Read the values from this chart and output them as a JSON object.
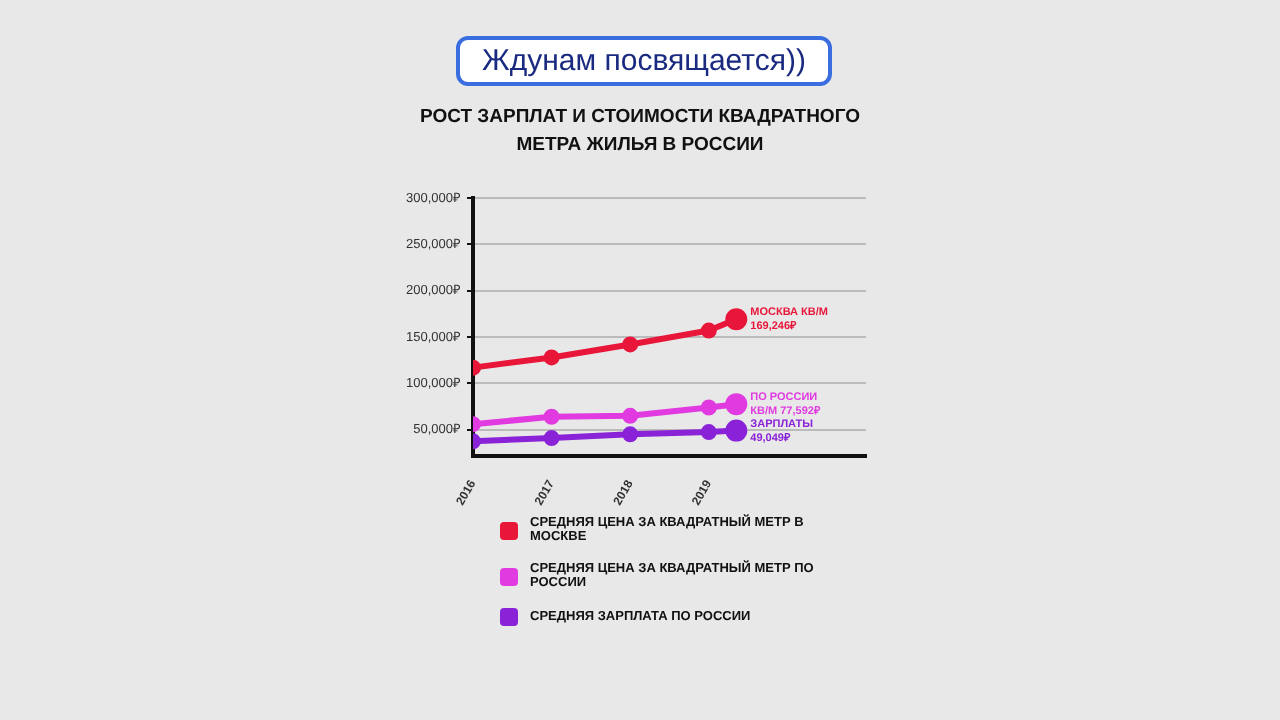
{
  "chart_data": {
    "type": "line",
    "title": "РОСТ ЗАРПЛАТ И СТОИМОСТИ КВАДРАТНОГО МЕТРА ЖИЛЬЯ В РОССИИ",
    "annotations": [
      "Ждунам посвящается))"
    ],
    "x": [
      2016,
      2017,
      2018,
      2019,
      2019.35
    ],
    "series": [
      {
        "name": "СРЕДНЯЯ ЦЕНА ЗА КВАДРАТНЫЙ МЕТР В МОСКВЕ",
        "color": "#e8173a",
        "values": [
          117000,
          128000,
          142000,
          157000,
          169246
        ],
        "value_labels": [
          null,
          null,
          null,
          null,
          "МОСКВА КВ/М\n169,246₽"
        ]
      },
      {
        "name": "СРЕДНЯЯ ЦЕНА ЗА КВАДРАТНЫЙ МЕТР ПО РОССИИ",
        "color": "#e03ae0",
        "values": [
          56000,
          64000,
          65000,
          74000,
          77592
        ],
        "value_labels": [
          null,
          null,
          null,
          null,
          "ПО РОССИИ\nКВ/М 77,592₽"
        ]
      },
      {
        "name": "СРЕДНЯЯ ЗАРПЛАТА ПО РОССИИ",
        "color": "#8a22d8",
        "values": [
          37500,
          41000,
          45000,
          47500,
          49049
        ],
        "value_labels": [
          null,
          null,
          null,
          null,
          "ЗАРПЛАТЫ\n49,049₽"
        ]
      }
    ],
    "xlim": [
      2016,
      2021
    ],
    "xticks": [
      2016,
      2017,
      2018,
      2019
    ],
    "ylim": [
      22000,
      300000
    ],
    "yticks": [
      {
        "value": 50000,
        "label": "50,000₽"
      },
      {
        "value": 100000,
        "label": "100,000₽"
      },
      {
        "value": 150000,
        "label": "150,000₽"
      },
      {
        "value": 200000,
        "label": "200,000₽"
      },
      {
        "value": 250000,
        "label": "250,000₽"
      },
      {
        "value": 300000,
        "label": "300,000₽"
      }
    ],
    "grid": "y",
    "legend": "bottom",
    "marker": "circle",
    "line_style": "solid"
  }
}
